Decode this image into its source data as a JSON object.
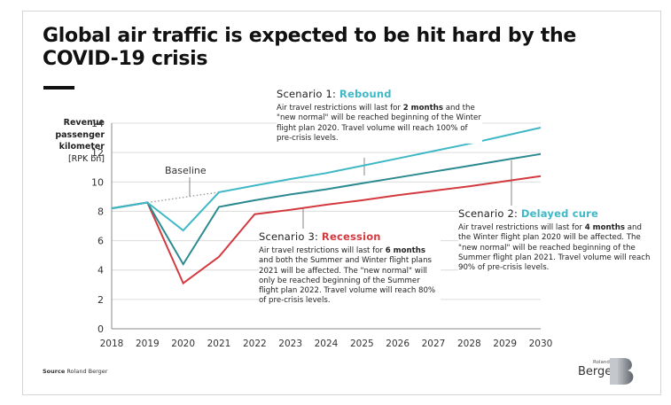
{
  "title": "Global air traffic is expected to be hit hard by the COVID-19 crisis",
  "y_axis_label": {
    "line1": "Revenue",
    "line2": "passenger",
    "line3": "kilometer",
    "unit": "[RPK bn]"
  },
  "annotations": {
    "scenario1": {
      "prefix": "Scenario 1: ",
      "name": "Rebound",
      "text_before": "Air travel restrictions will last for ",
      "bold": "2 months",
      "text_after": " and the \"new normal\" will be reached beginning of the Winter flight plan 2020. Travel volume will reach 100% of pre-crisis levels."
    },
    "scenario2": {
      "prefix": "Scenario 2: ",
      "name": "Delayed cure",
      "text_before": "Air travel restrictions will last for ",
      "bold": "4 months",
      "text_after": " and the Winter flight plan 2020 will be affected. The \"new normal\" will be reached beginning of the Summer flight plan 2021. Travel volume will reach 90% of pre-crisis levels."
    },
    "scenario3": {
      "prefix": "Scenario 3: ",
      "name": "Recession",
      "text_before": "Air travel restrictions will last for ",
      "bold": "6 months",
      "text_after": " and both the Summer and Winter flight plans 2021 will be affected. The \"new normal\" will only be reached beginning of the Summer flight plan 2022. Travel volume will reach 80% of pre-crisis levels."
    },
    "baseline": "Baseline"
  },
  "source": {
    "label": "Source",
    "value": "Roland Berger"
  },
  "logo": {
    "small": "Roland",
    "big": "Berger"
  },
  "colors": {
    "rebound": "#3fb8c6",
    "delayed": "#2b8a90",
    "recession": "#d33a40",
    "baseline": "#9a9a9a",
    "grid": "#dcdcdc",
    "axis": "#888888"
  },
  "chart_data": {
    "type": "line",
    "title": "Global air traffic is expected to be hit hard by the COVID-19 crisis",
    "xlabel": "",
    "ylabel": "Revenue passenger kilometer [RPK bn]",
    "x": [
      2018,
      2019,
      2020,
      2021,
      2022,
      2023,
      2024,
      2025,
      2026,
      2027,
      2028,
      2029,
      2030
    ],
    "xlim": [
      2018,
      2030
    ],
    "ylim": [
      0,
      14
    ],
    "yticks": [
      0,
      2,
      4,
      6,
      8,
      10,
      12,
      14
    ],
    "grid": true,
    "series": [
      {
        "name": "Scenario 1: Rebound",
        "key": "rebound",
        "x": [
          2018,
          2019,
          2020,
          2021,
          2022,
          2023,
          2024,
          2025,
          2026,
          2027,
          2028,
          2029,
          2030
        ],
        "values": [
          8.2,
          8.6,
          6.7,
          9.3,
          9.75,
          10.2,
          10.6,
          11.1,
          11.6,
          12.1,
          12.6,
          13.15,
          13.7
        ]
      },
      {
        "name": "Scenario 2: Delayed cure",
        "key": "delayed",
        "x": [
          2018,
          2019,
          2020,
          2021,
          2022,
          2023,
          2024,
          2025,
          2026,
          2027,
          2028,
          2029,
          2030
        ],
        "values": [
          8.2,
          8.6,
          4.4,
          8.3,
          8.75,
          9.15,
          9.5,
          9.9,
          10.3,
          10.7,
          11.1,
          11.5,
          11.9
        ]
      },
      {
        "name": "Scenario 3: Recession",
        "key": "recession",
        "x": [
          2018,
          2019,
          2020,
          2021,
          2022,
          2023,
          2024,
          2025,
          2026,
          2027,
          2028,
          2029,
          2030
        ],
        "values": [
          8.2,
          8.6,
          3.1,
          4.9,
          7.8,
          8.1,
          8.45,
          8.75,
          9.1,
          9.4,
          9.7,
          10.05,
          10.4
        ]
      },
      {
        "name": "Baseline",
        "key": "baseline",
        "style": "dotted",
        "x": [
          2019,
          2020,
          2021
        ],
        "values": [
          8.6,
          8.95,
          9.3
        ]
      }
    ]
  }
}
